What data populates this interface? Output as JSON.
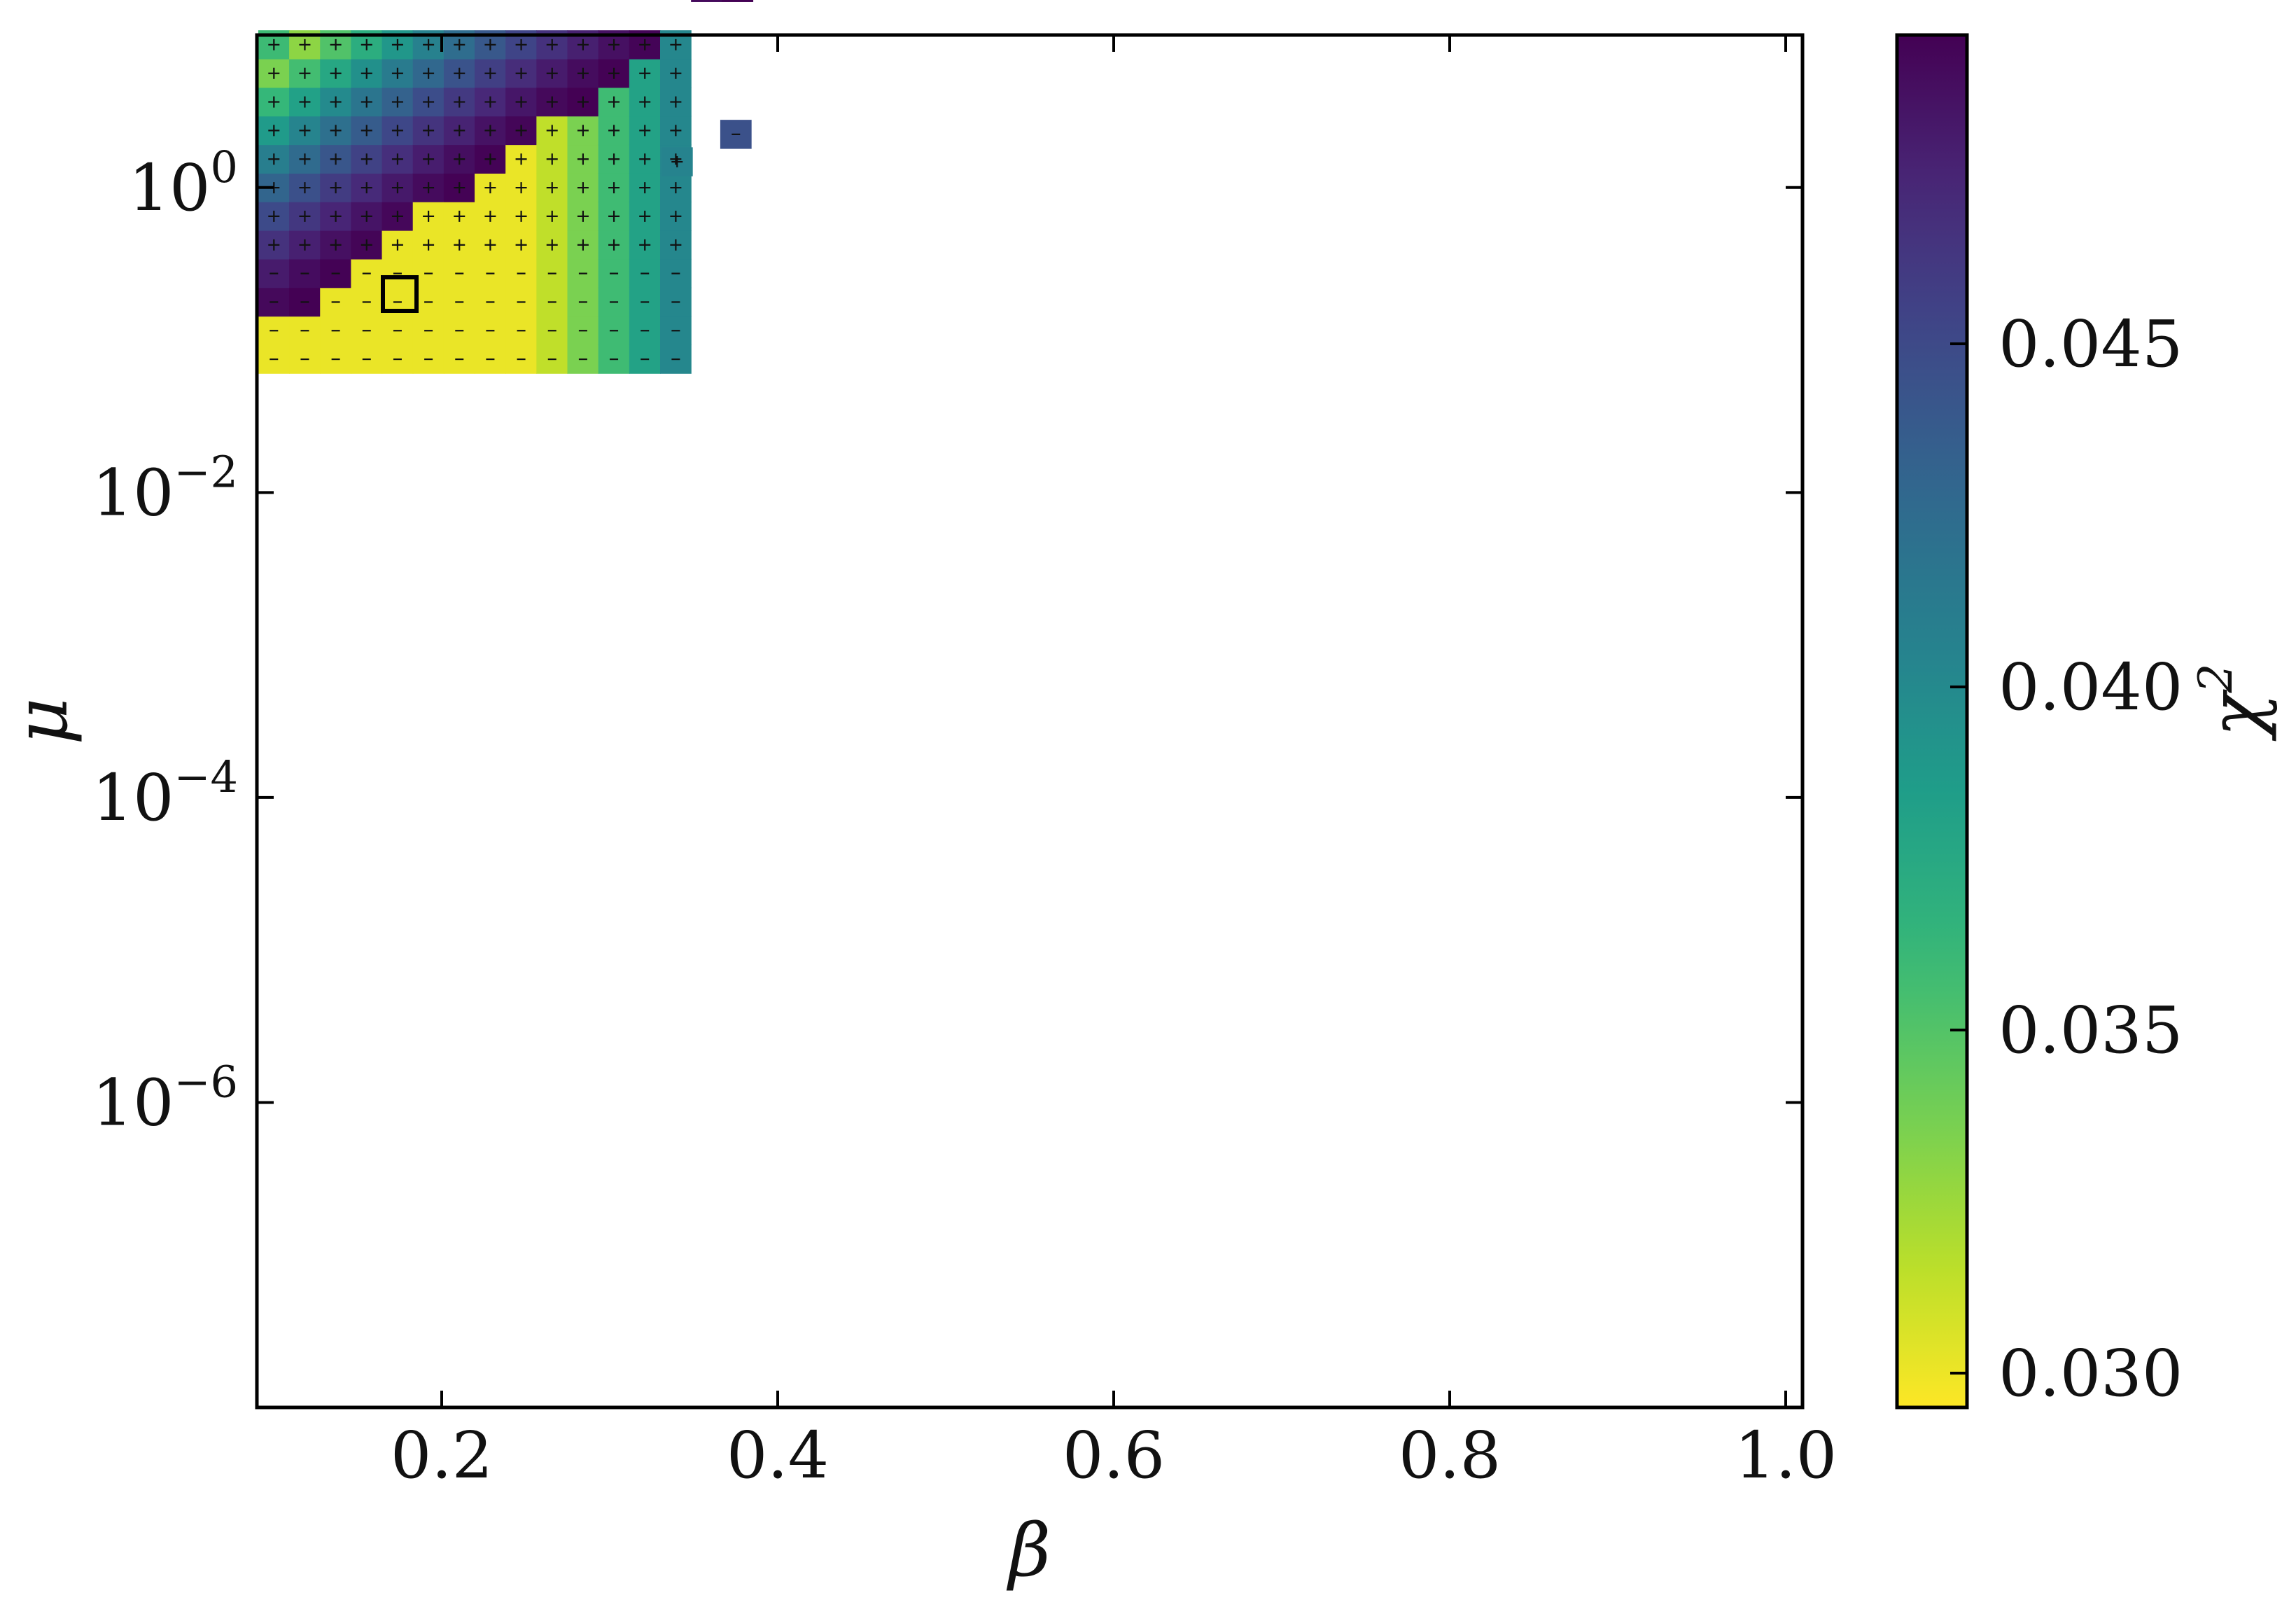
{
  "chart_data": {
    "type": "heatmap",
    "xlabel": "β",
    "ylabel": "μ",
    "x_scale": "linear",
    "y_scale": "log",
    "xlim": [
      0.09,
      1.01
    ],
    "ylim": [
      1e-08,
      10.0
    ],
    "x_ticks": [
      0.2,
      0.4,
      0.6,
      0.8,
      1.0
    ],
    "x_tick_labels": [
      "0.2",
      "0.4",
      "0.6",
      "0.8",
      "1.0"
    ],
    "y_ticks": [
      {
        "value": 1.0,
        "base": "10",
        "exp": "0"
      },
      {
        "value": 0.01,
        "base": "10",
        "exp": "−2"
      },
      {
        "value": 0.0001,
        "base": "10",
        "exp": "−4"
      },
      {
        "value": 1e-06,
        "base": "10",
        "exp": "−6"
      }
    ],
    "grid": false,
    "grid_description": "cells on a regular grid of β and log10(μ); colour = χ² (viridis, reversed); '+' and '−' markers in cells",
    "beta_grid": {
      "start": 0.1,
      "step": 0.0184,
      "count": 50
    },
    "log10_mu_grid": {
      "start": -7.5,
      "step": 0.1875,
      "count": 48
    },
    "band": {
      "a": 0.15,
      "b": -7.95,
      "lower_offset": -1.85,
      "upper_offset": 0.05
    },
    "upper_region": {
      "beta_min": 0.1,
      "beta_max": 0.345,
      "log10_mu_min": -1.2,
      "log10_mu_max": 1.05
    },
    "stray_cells": [
      {
        "beta": 0.375,
        "log10_mu": 0.35,
        "chi2": 0.0445
      },
      {
        "beta": 0.34,
        "log10_mu": 0.17,
        "chi2": 0.0405
      }
    ],
    "plus_region_log10_mu_min": -0.55,
    "best_fit": {
      "beta": 0.175,
      "mu": 0.2
    },
    "colorbar": {
      "label": "χ",
      "label_sup": "2",
      "cmap": "viridis_r",
      "vmin": 0.0295,
      "vmax": 0.0495,
      "ticks": [
        0.03,
        0.035,
        0.04,
        0.045
      ],
      "tick_labels": [
        "0.030",
        "0.035",
        "0.040",
        "0.045"
      ]
    }
  }
}
